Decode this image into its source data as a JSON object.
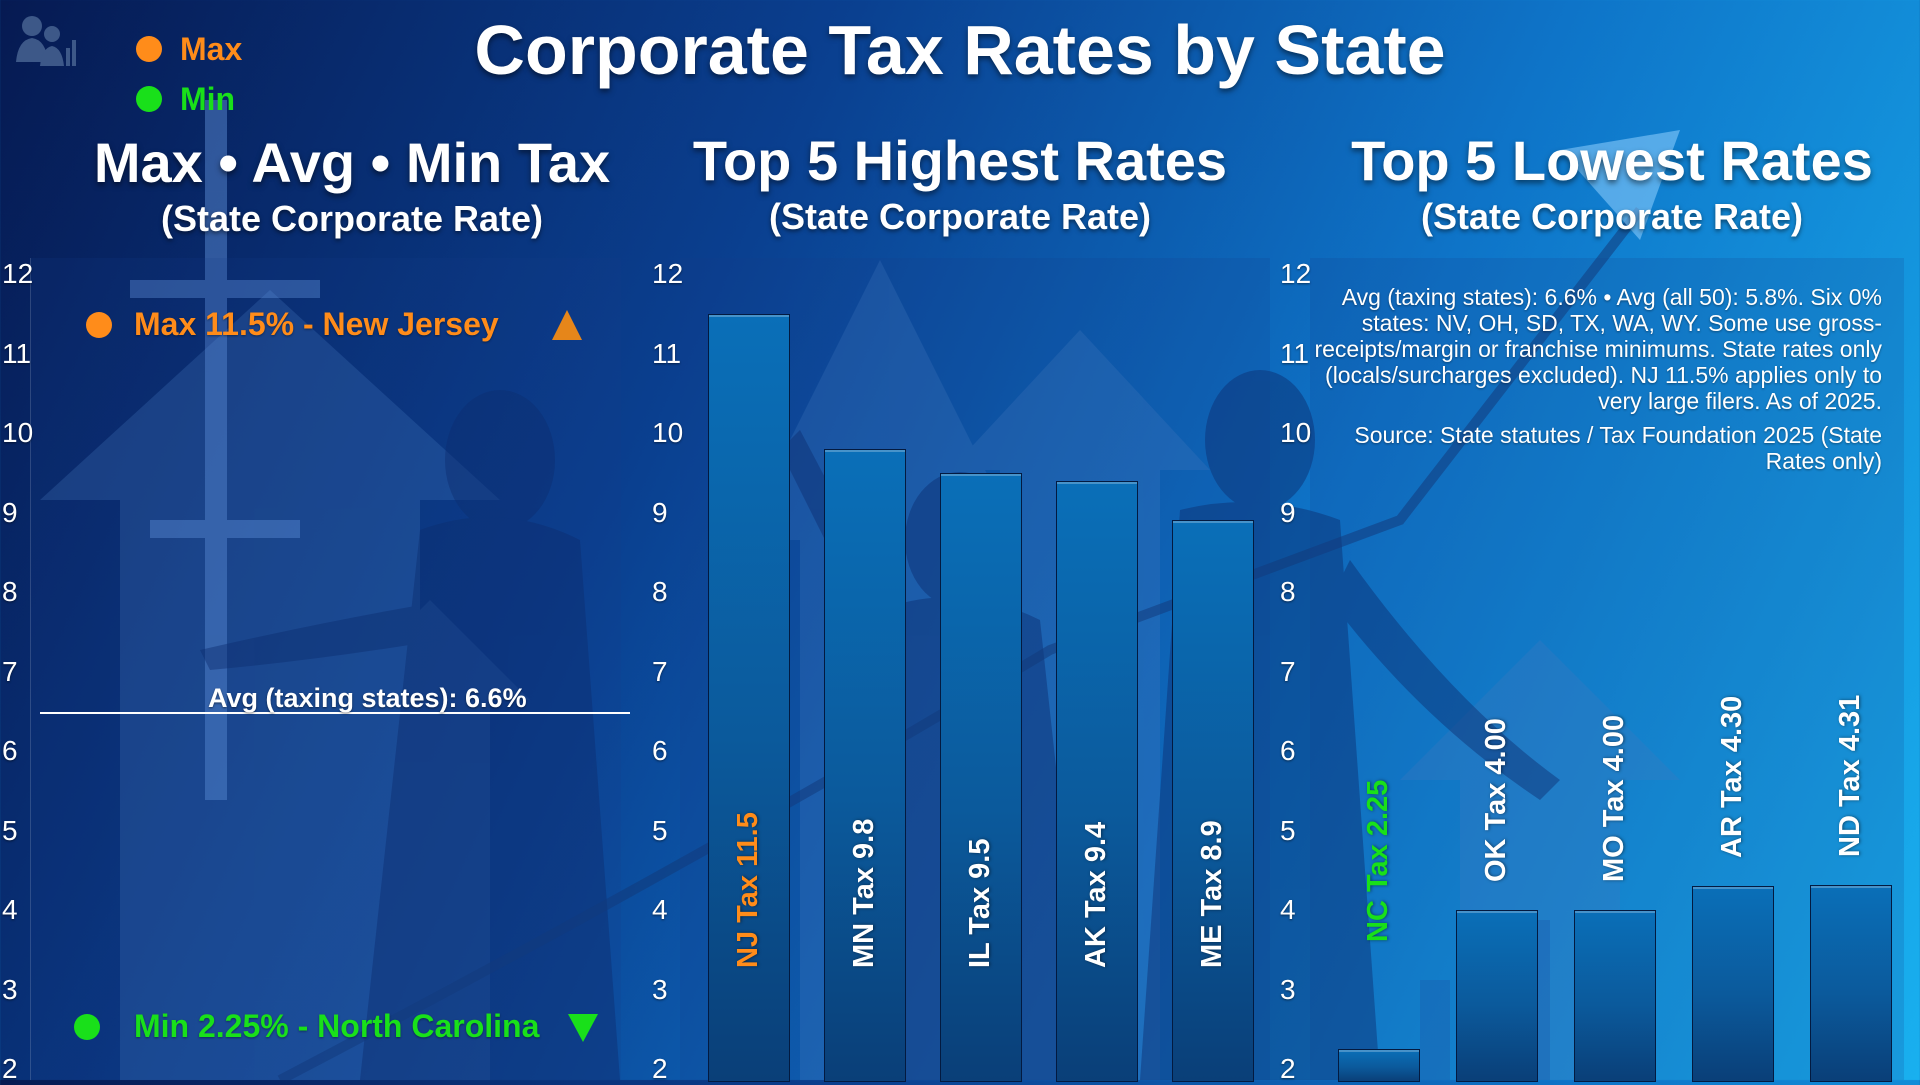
{
  "title": "Corporate Tax Rates by State",
  "legend": [
    {
      "label": "Max",
      "color": "#ff8c1a"
    },
    {
      "label": "Min",
      "color": "#19e01a"
    }
  ],
  "panels": {
    "left": {
      "title": "Max • Avg • Min Tax",
      "subtitle": "(State Corporate Rate)"
    },
    "middle": {
      "title": "Top 5 Highest Rates",
      "subtitle": "(State Corporate Rate)"
    },
    "right": {
      "title": "Top 5 Lowest Rates",
      "subtitle": "(State Corporate Rate)"
    }
  },
  "summary": {
    "max_label": "Max 11.5% - New Jersey",
    "min_label": "Min 2.25% - North Carolina",
    "avg_label": "Avg (taxing states): 6.6%"
  },
  "notes": {
    "text": "Avg (taxing states): 6.6% • Avg (all 50): 5.8%. Six 0% states: NV, OH, SD, TX, WA, WY. Some use gross-receipts/margin or franchise minimums. State rates only (locals/surcharges excluded). NJ 11.5% applies only to very large filers. As of 2025.",
    "source": "Source: State statutes / Tax Foundation 2025 (State Rates only)"
  },
  "icon": "people-chart-icon",
  "colors": {
    "max": "#ff8c1a",
    "min": "#19e01a"
  },
  "chart_data": [
    {
      "type": "line",
      "title": "Max • Avg • Min Tax",
      "subtitle": "(State Corporate Rate)",
      "y_ticks": [
        "12",
        "11",
        "10",
        "9",
        "8",
        "7",
        "6",
        "5",
        "4",
        "3",
        "2"
      ],
      "ylim": [
        2,
        12
      ],
      "max": {
        "value": 11.5,
        "state": "New Jersey"
      },
      "avg": {
        "value": 6.6,
        "label": "Avg (taxing states): 6.6%"
      },
      "min": {
        "value": 2.25,
        "state": "North Carolina"
      }
    },
    {
      "type": "bar",
      "title": "Top 5 Highest Rates",
      "subtitle": "(State Corporate Rate)",
      "y_ticks": [
        "12",
        "11",
        "10",
        "9",
        "8",
        "7",
        "6",
        "5",
        "4",
        "3",
        "2"
      ],
      "ylim": [
        2,
        12
      ],
      "categories": [
        "NJ",
        "MN",
        "IL",
        "AK",
        "ME"
      ],
      "values": [
        11.5,
        9.8,
        9.5,
        9.4,
        8.9
      ],
      "bar_labels": [
        "NJ Tax 11.5",
        "MN Tax 9.8",
        "IL Tax 9.5",
        "AK Tax 9.4",
        "ME Tax 8.9"
      ]
    },
    {
      "type": "bar",
      "title": "Top 5 Lowest Rates",
      "subtitle": "(State Corporate Rate)",
      "y_ticks": [
        "12",
        "11",
        "10",
        "9",
        "8",
        "7",
        "6",
        "5",
        "4",
        "3",
        "2"
      ],
      "ylim": [
        2,
        12
      ],
      "categories": [
        "NC",
        "OK",
        "MO",
        "AR",
        "ND"
      ],
      "values": [
        2.25,
        4.0,
        4.0,
        4.3,
        4.31
      ],
      "bar_labels": [
        "NC Tax 2.25",
        "OK Tax 4.00",
        "MO Tax 4.00",
        "AR Tax 4.30",
        "ND Tax 4.31"
      ]
    }
  ]
}
